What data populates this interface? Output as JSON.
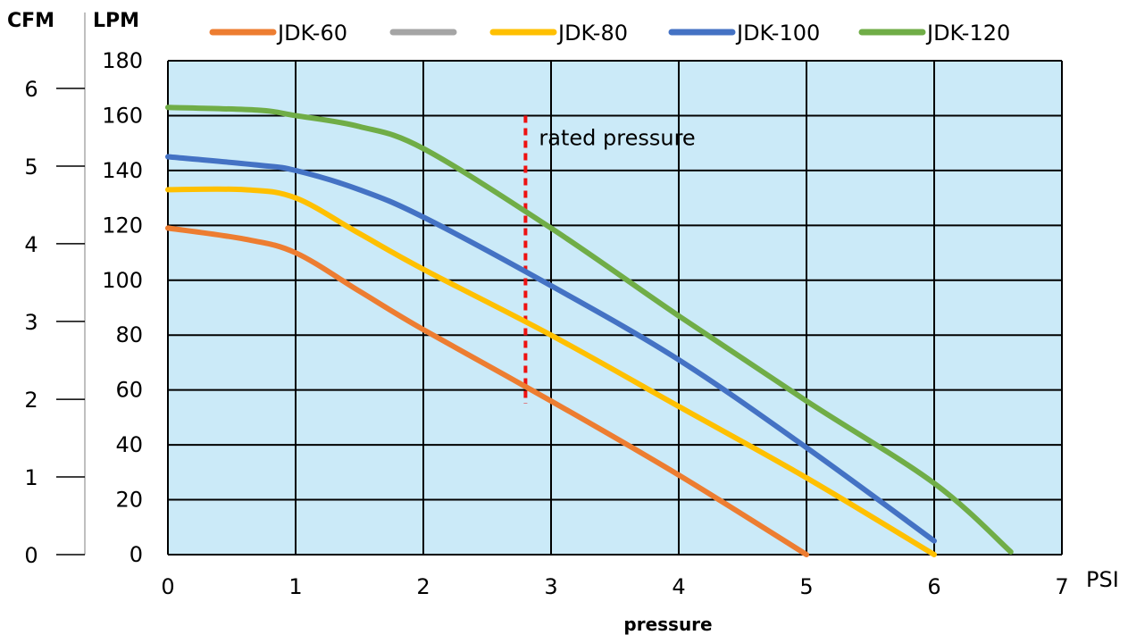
{
  "chart_data": {
    "type": "line",
    "xlabel": "pressure",
    "x_unit": "PSI",
    "y_unit": "LPM",
    "y2_unit": "CFM",
    "xlim": [
      0,
      7
    ],
    "ylim": [
      0,
      180
    ],
    "x_ticks": [
      "0",
      "1",
      "2",
      "3",
      "4",
      "5",
      "6",
      "7"
    ],
    "y_ticks": [
      "0",
      "20",
      "40",
      "60",
      "80",
      "100",
      "120",
      "140",
      "160",
      "180"
    ],
    "cfm_ticks": [
      {
        "label": "0",
        "lpm": 0
      },
      {
        "label": "1",
        "lpm": 28.3
      },
      {
        "label": "2",
        "lpm": 56.6
      },
      {
        "label": "3",
        "lpm": 85
      },
      {
        "label": "4",
        "lpm": 113.3
      },
      {
        "label": "5",
        "lpm": 141.6
      },
      {
        "label": "6",
        "lpm": 169.9
      }
    ],
    "grid": true,
    "plot_background": "#cbeaf8",
    "legend_position": "top",
    "annotation": {
      "text": "rated pressure",
      "x": 2.8,
      "y_range": [
        55,
        160
      ],
      "color": "#ee1111"
    },
    "series": [
      {
        "name": "JDK-60",
        "color": "#ed7d31",
        "x": [
          0,
          0.6,
          1,
          1.5,
          2,
          3,
          4,
          5
        ],
        "y": [
          119,
          115,
          110,
          96,
          82,
          56,
          29,
          0
        ]
      },
      {
        "name": "",
        "color": "#a5a5a5",
        "x": [],
        "y": []
      },
      {
        "name": "JDK-80",
        "color": "#ffc000",
        "x": [
          0,
          0.6,
          1,
          1.5,
          2,
          3,
          4,
          5,
          6
        ],
        "y": [
          133,
          133,
          130,
          117,
          104,
          80,
          54,
          28,
          0
        ]
      },
      {
        "name": "JDK-100",
        "color": "#4472c4",
        "x": [
          0,
          0.7,
          1,
          1.5,
          2,
          3,
          4,
          5,
          6
        ],
        "y": [
          145,
          142,
          140,
          133,
          123,
          98,
          71,
          39,
          5
        ]
      },
      {
        "name": "JDK-120",
        "color": "#70ad47",
        "x": [
          0,
          0.7,
          1,
          1.5,
          2,
          3,
          4,
          5,
          6,
          6.6
        ],
        "y": [
          163,
          162,
          160,
          156,
          148,
          119,
          87,
          56,
          26,
          1
        ]
      }
    ]
  }
}
